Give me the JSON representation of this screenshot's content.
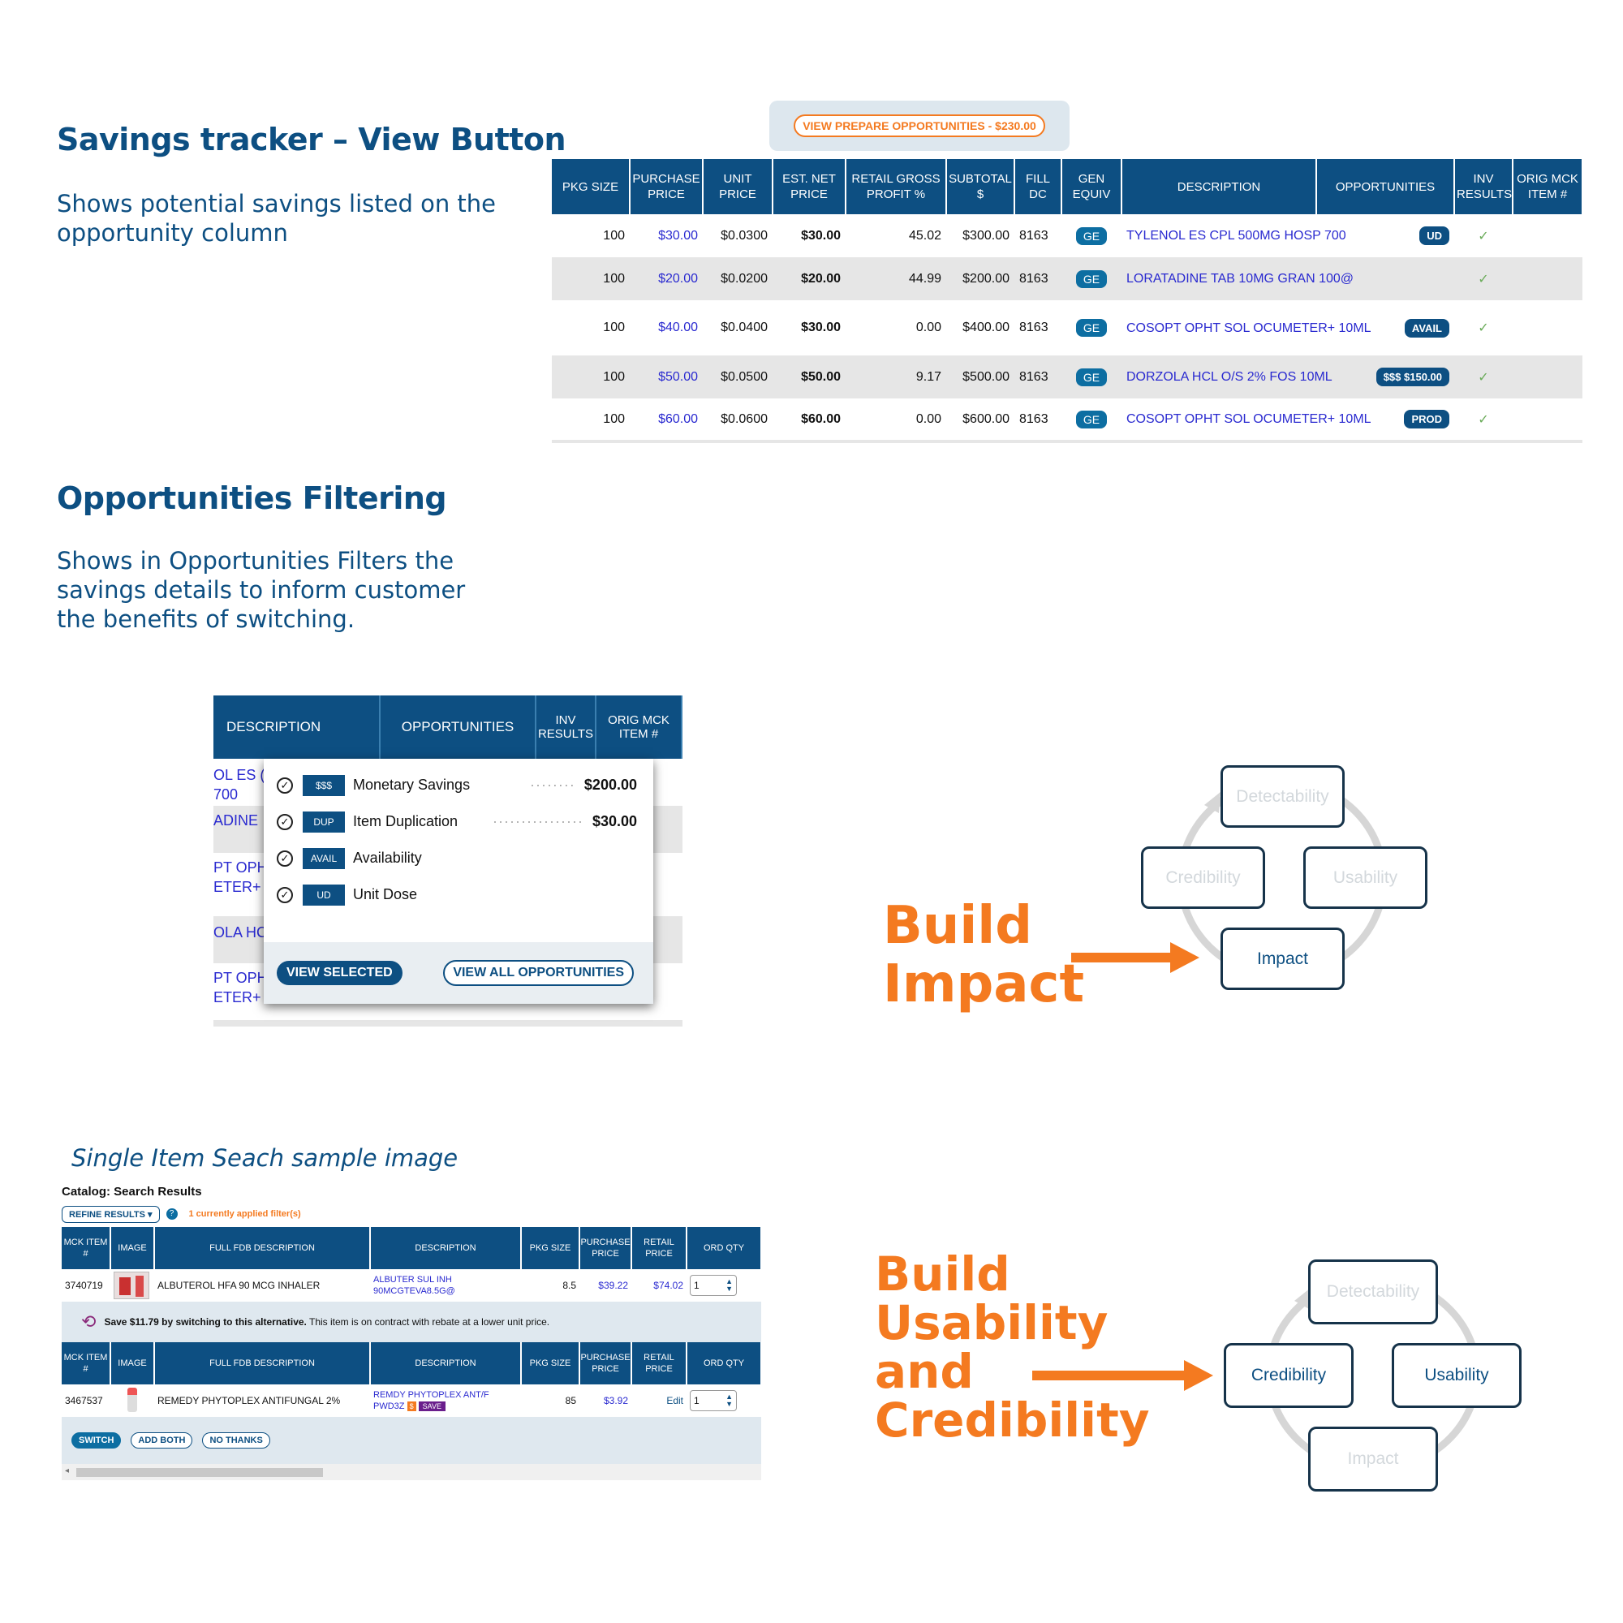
{
  "sections": {
    "savings_title": "Savings tracker – View Button",
    "savings_desc": "Shows potential savings listed on the opportunity column",
    "filter_title": "Opportunities Filtering",
    "filter_desc": "Shows in Opportunities Filters the savings details to inform customer the benefits of switching.",
    "search_caption": "Single Item Seach sample image"
  },
  "top_table": {
    "view_button": "VIEW PREPARE OPPORTUNITIES - $230.00",
    "headers": [
      "PKG SIZE",
      "PURCHASE PRICE",
      "UNIT PRICE",
      "EST. NET PRICE",
      "RETAIL GROSS PROFIT %",
      "SUBTOTAL $",
      "FILL DC",
      "GEN EQUIV",
      "DESCRIPTION",
      "OPPORTUNITIES",
      "INV RESULTS",
      "ORIG MCK ITEM #"
    ],
    "rows": [
      {
        "pkg": "100",
        "purchase": "$30.00",
        "unit": "$0.0300",
        "net": "$30.00",
        "gross": "45.02",
        "subtotal": "$300.00",
        "dc": "8163",
        "gen": "GE",
        "desc": "TYLENOL ES CPL 500MG HOSP 700",
        "opp": "UD",
        "inv": "✓"
      },
      {
        "pkg": "100",
        "purchase": "$20.00",
        "unit": "$0.0200",
        "net": "$20.00",
        "gross": "44.99",
        "subtotal": "$200.00",
        "dc": "8163",
        "gen": "GE",
        "desc": "LORATADINE TAB 10MG GRAN 100@",
        "opp": "",
        "inv": "✓"
      },
      {
        "pkg": "100",
        "purchase": "$40.00",
        "unit": "$0.0400",
        "net": "$30.00",
        "gross": "0.00",
        "subtotal": "$400.00",
        "dc": "8163",
        "gen": "GE",
        "desc": "COSOPT OPHT SOL OCUMETER+ 10ML",
        "opp": "AVAIL",
        "inv": "✓"
      },
      {
        "pkg": "100",
        "purchase": "$50.00",
        "unit": "$0.0500",
        "net": "$50.00",
        "gross": "9.17",
        "subtotal": "$500.00",
        "dc": "8163",
        "gen": "GE",
        "desc": "DORZOLA HCL O/S 2% FOS 10ML",
        "opp": "$$$  $150.00",
        "inv": "✓"
      },
      {
        "pkg": "100",
        "purchase": "$60.00",
        "unit": "$0.0600",
        "net": "$60.00",
        "gross": "0.00",
        "subtotal": "$600.00",
        "dc": "8163",
        "gen": "GE",
        "desc": "COSOPT OPHT SOL OCUMETER+ 10ML",
        "opp": "PROD",
        "inv": "✓"
      }
    ]
  },
  "filter": {
    "headers": {
      "description": "DESCRIPTION",
      "opportunities": "OPPORTUNITIES",
      "inv": "INV RESULTS",
      "orig": "ORIG MCK ITEM #"
    },
    "behind_rows": [
      "OL ES (\n700",
      "ADINE",
      "PT OPH\nETER+",
      "OLA HC",
      "PT OPH\nETER+ 10ML"
    ],
    "options": [
      {
        "tag": "$$$",
        "label": "Monetary Savings",
        "amount": "$200.00",
        "checked": true
      },
      {
        "tag": "DUP",
        "label": "Item Duplication",
        "amount": "$30.00",
        "checked": true
      },
      {
        "tag": "AVAIL",
        "label": "Availability",
        "amount": "",
        "checked": true
      },
      {
        "tag": "UD",
        "label": "Unit Dose",
        "amount": "",
        "checked": true
      }
    ],
    "view_selected": "VIEW SELECTED",
    "view_all": "VIEW ALL OPPORTUNITIES"
  },
  "diagram1": {
    "title_line1": "Build",
    "title_line2": "Impact",
    "nodes": {
      "top": "Detectability",
      "left": "Credibility",
      "right": "Usability",
      "bottom": "Impact"
    },
    "highlight": "Impact"
  },
  "diagram2": {
    "title_lines": [
      "Build",
      "Usability",
      "and",
      "Credibility"
    ],
    "nodes": {
      "top": "Detectability",
      "left": "Credibility",
      "right": "Usability",
      "bottom": "Impact"
    },
    "highlight": [
      "Credibility",
      "Usability"
    ]
  },
  "search": {
    "title": "Catalog: Search Results",
    "refine": "REFINE RESULTS",
    "filter_note": "1 currently applied filter(s)",
    "headers": [
      "MCK ITEM #",
      "IMAGE",
      "FULL FDB DESCRIPTION",
      "DESCRIPTION",
      "PKG SIZE",
      "PURCHASE PRICE",
      "RETAIL PRICE",
      "ORD QTY"
    ],
    "row1": {
      "item": "3740719",
      "fdb": "ALBUTEROL HFA 90 MCG INHALER",
      "desc": "ALBUTER SUL INH 90MCGTEVA8.5G@",
      "pkg": "8.5",
      "purchase": "$39.22",
      "retail": "$74.02",
      "qty": "1"
    },
    "alt_msg_bold": "Save $11.79 by switching to this alternative.",
    "alt_msg": " This item is on contract with rebate at a lower unit price.",
    "row2": {
      "item": "3467537",
      "fdb": "REMEDY PHYTOPLEX ANTIFUNGAL 2%",
      "desc": "REMDY PHYTOPLEX ANT/F PWD3Z",
      "badge_s": "$",
      "badge_save": "SAVE",
      "pkg": "85",
      "purchase": "$3.92",
      "retail": "Edit",
      "qty": "1"
    },
    "switch": "SWITCH",
    "add_both": "ADD BOTH",
    "no_thanks": "NO THANKS"
  },
  "colors": {
    "navy": "#0d4f82",
    "orange": "#f47a20",
    "link": "#2a2ad0",
    "check": "#6aab59"
  }
}
